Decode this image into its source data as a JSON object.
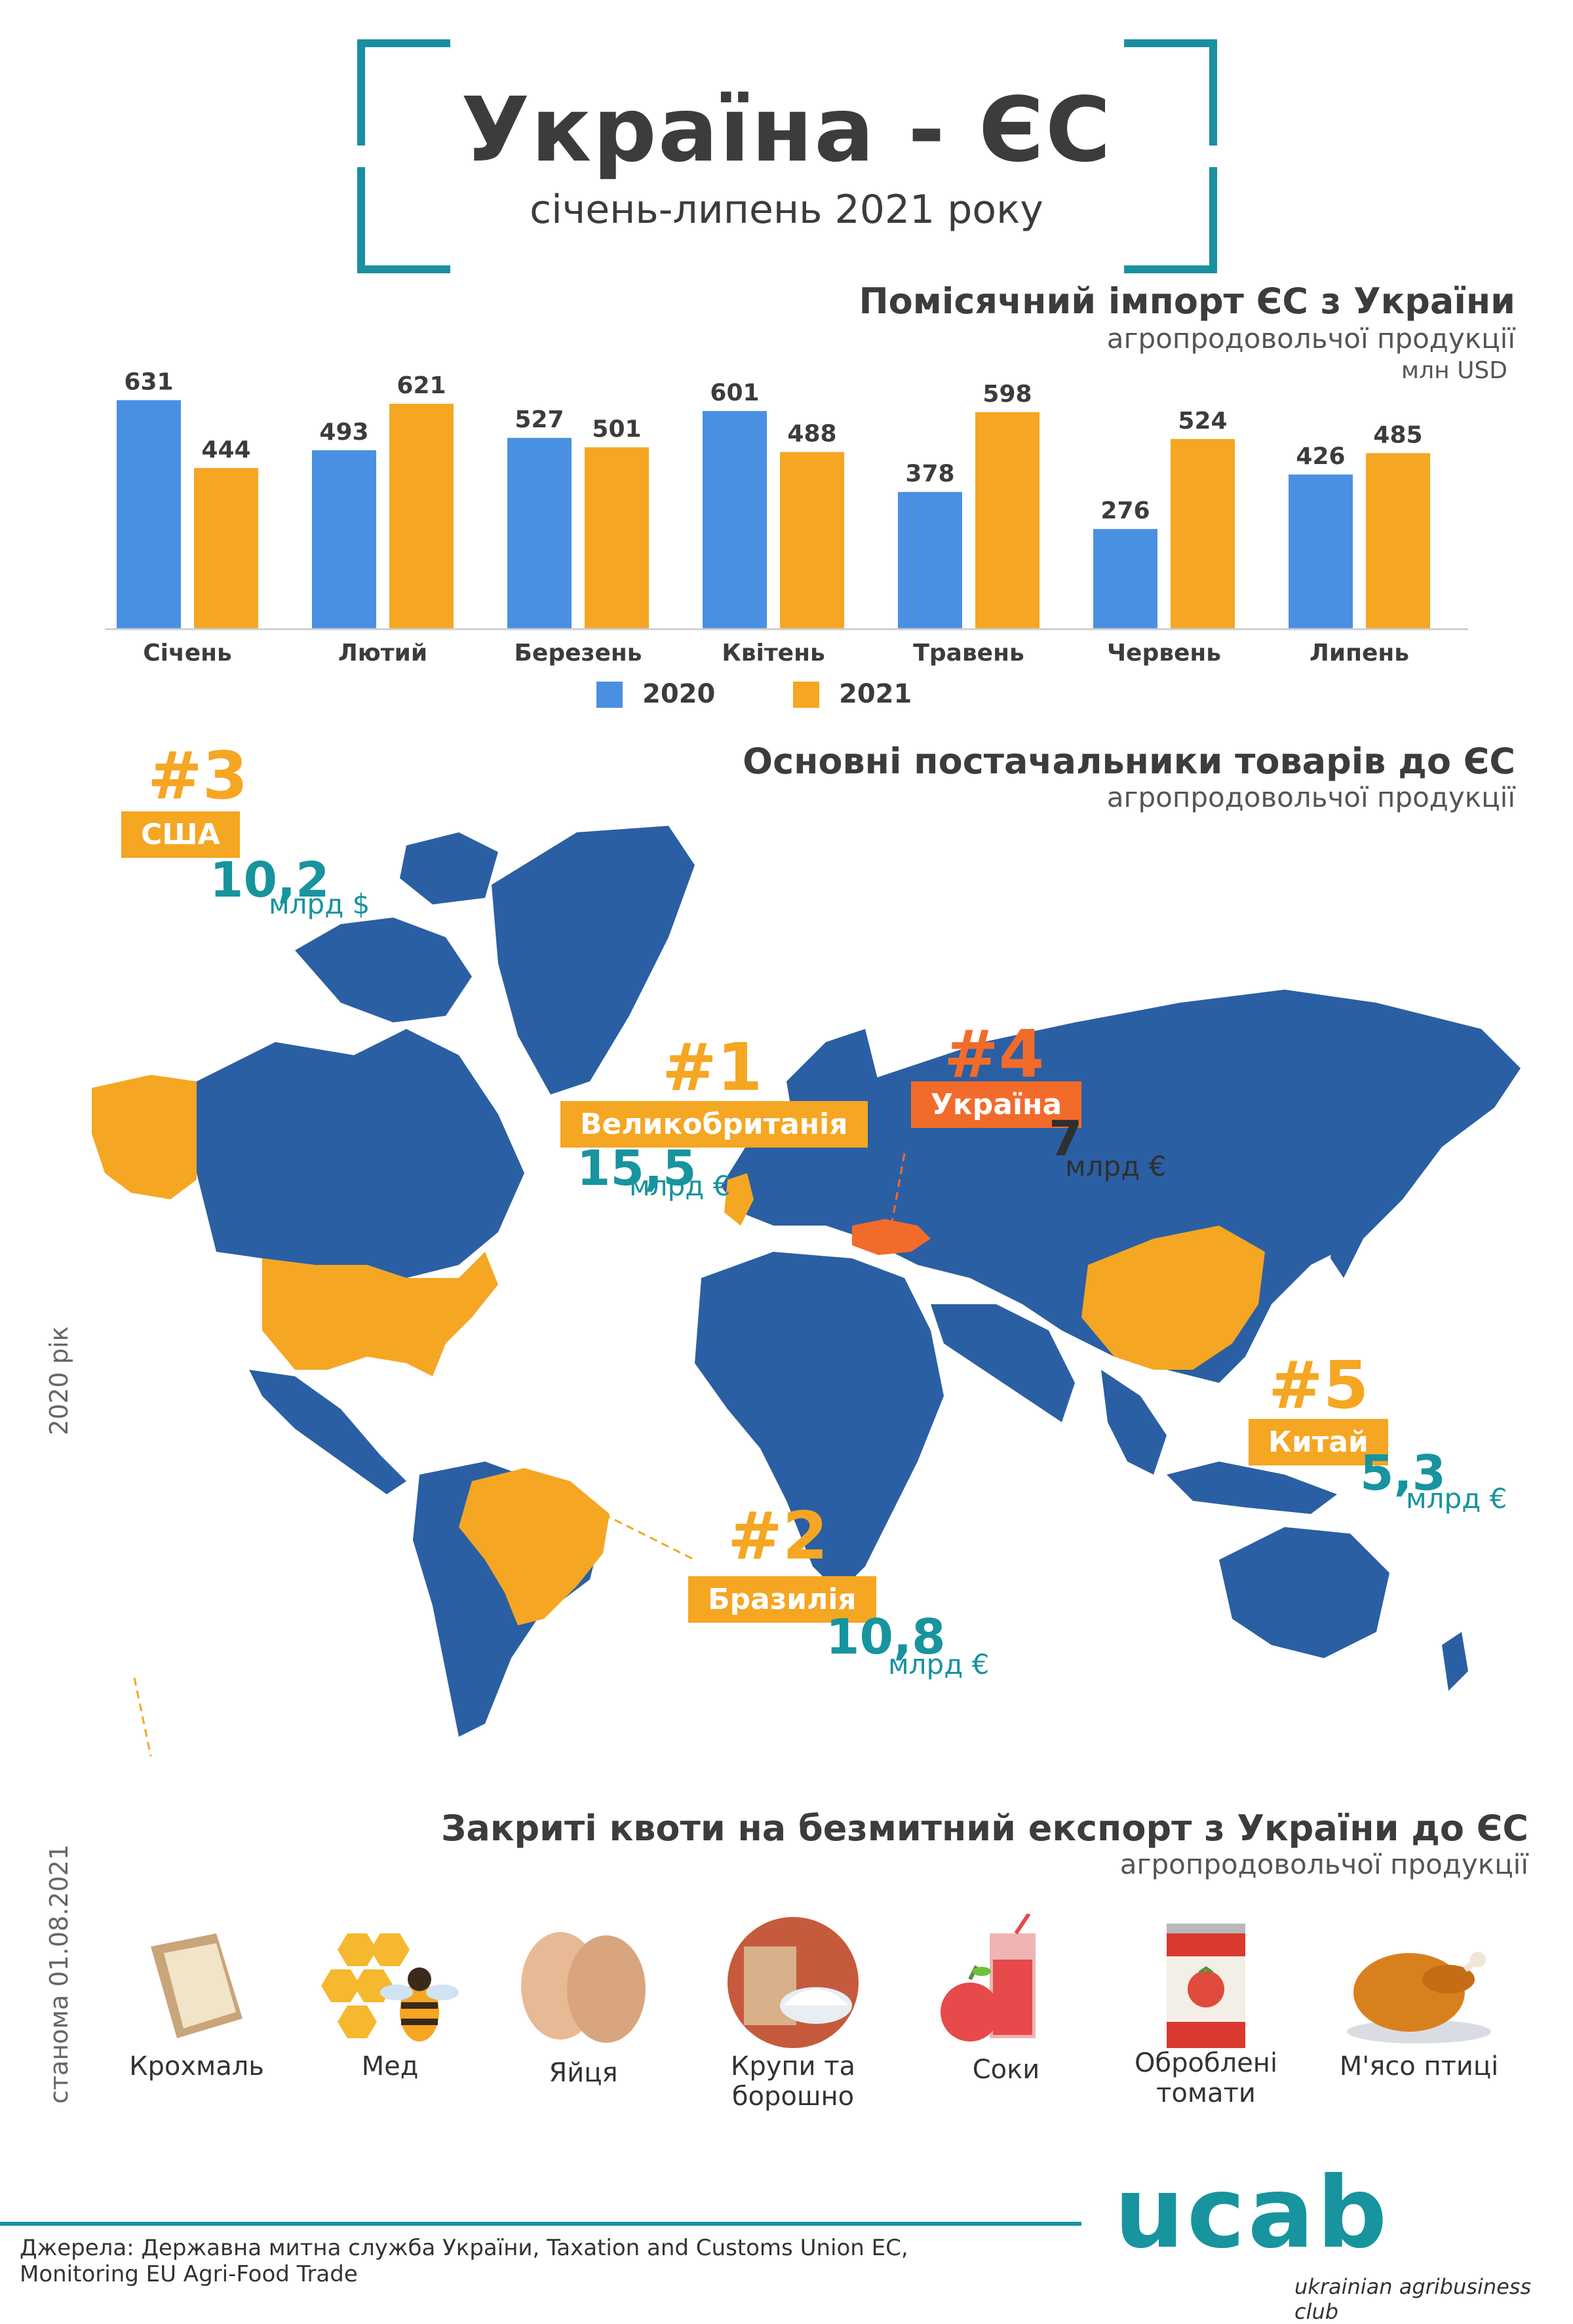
{
  "header": {
    "title": "Україна - ЄС",
    "subtitle": "січень-липень 2021 року"
  },
  "monthly": {
    "title": "Помісячний імпорт ЄС з України",
    "subtitle": "агропродовольчої продукції",
    "unit": "млн USD"
  },
  "chart_data": {
    "type": "bar",
    "title": "Помісячний імпорт ЄС з України",
    "categories": [
      "Січень",
      "Лютий",
      "Березень",
      "Квітень",
      "Травень",
      "Червень",
      "Липень"
    ],
    "series": [
      {
        "name": "2020",
        "color": "#4a90e2",
        "values": [
          631,
          493,
          527,
          601,
          378,
          276,
          426
        ]
      },
      {
        "name": "2021",
        "color": "#f5a623",
        "values": [
          444,
          621,
          501,
          488,
          598,
          524,
          485
        ]
      }
    ],
    "ylim": [
      0,
      650
    ],
    "grid": false,
    "legend": "bottom-center"
  },
  "suppliers": {
    "title": "Основні постачальники товарів до ЄС",
    "subtitle": "агропродовольчої продукції",
    "year_label": "2020 рік",
    "items": [
      {
        "rank": "#1",
        "country": "Великобританія",
        "value": "15,5",
        "unit": "млрд €"
      },
      {
        "rank": "#2",
        "country": "Бразилія",
        "value": "10,8",
        "unit": "млрд €"
      },
      {
        "rank": "#3",
        "country": "США",
        "value": "10,2",
        "unit": "млрд $"
      },
      {
        "rank": "#4",
        "country": "Україна",
        "value": "7",
        "unit": "млрд €"
      },
      {
        "rank": "#5",
        "country": "Китай",
        "value": "5,3",
        "unit": "млрд €"
      }
    ],
    "colors": {
      "land": "#2b5fa3",
      "supplier": "#f5a623",
      "ukraine": "#f26b2b"
    }
  },
  "quotas": {
    "title": "Закриті квоти на безмитний експорт з України до ЄС",
    "subtitle": "агропродовольчої продукції",
    "date_label": "станома 01.08.2021",
    "items": [
      {
        "icon": "starch-bag-icon",
        "label": "Крохмаль"
      },
      {
        "icon": "honey-bee-icon",
        "label": "Мед"
      },
      {
        "icon": "eggs-icon",
        "label": "Яйця"
      },
      {
        "icon": "cereals-flour-icon",
        "label": "Крупи та борошно"
      },
      {
        "icon": "juice-icon",
        "label": "Соки"
      },
      {
        "icon": "canned-tomatoes-icon",
        "label": "Оброблені томати"
      },
      {
        "icon": "roast-poultry-icon",
        "label": "М'ясо птиці"
      }
    ]
  },
  "footer": {
    "source_line1": "Джерела: Державна митна служба України, Taxation and Customs Union EC,",
    "source_line2": "Monitoring EU Agri-Food Trade",
    "logo": "ucab",
    "logo_sub": "ukrainian agribusiness club"
  }
}
